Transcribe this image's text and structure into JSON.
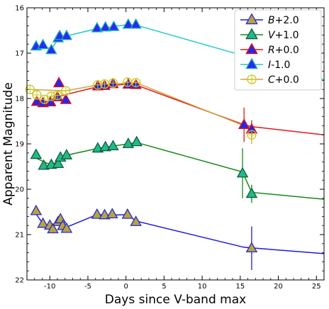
{
  "chart_data": {
    "type": "scatter",
    "xlabel": "Days since V-band max",
    "ylabel": "Apparent Magnitude",
    "xlim": [
      -13,
      26
    ],
    "ylim": [
      22,
      16
    ],
    "y_inverted": true,
    "x_ticks": [
      -10,
      -5,
      0,
      5,
      10,
      15,
      20,
      25
    ],
    "y_ticks": [
      16,
      17,
      18,
      19,
      20,
      21,
      22
    ],
    "legend_position": "top-right",
    "series": [
      {
        "name": "B+2.0",
        "label_band": "B",
        "label_offset": "+2.0",
        "line_color": "#1a1ae6",
        "marker": "triangle",
        "marker_fill": "#b5a53d",
        "marker_edge": "#2a2ad0",
        "x": [
          -11.8,
          -10.9,
          -10.0,
          -9.6,
          -8.9,
          -8.6,
          -8.3,
          -7.8,
          -3.8,
          -2.8,
          -1.8,
          0.2,
          1.3
        ],
        "y": [
          20.48,
          20.76,
          20.8,
          20.88,
          20.72,
          20.66,
          20.81,
          20.87,
          20.56,
          20.57,
          20.55,
          20.56,
          20.72
        ],
        "fit": {
          "x": [
            -12,
            -10.9,
            -10,
            -9,
            -8,
            -3.8,
            -1.8,
            0.2,
            1.3,
            15.5,
            26
          ],
          "y": [
            20.5,
            20.76,
            20.82,
            20.78,
            20.85,
            20.56,
            20.57,
            20.56,
            20.7,
            21.28,
            21.42
          ]
        },
        "late": [
          {
            "x": 16.5,
            "y": 21.3,
            "err": 0.48
          }
        ]
      },
      {
        "name": "V+1.0",
        "label_band": "V",
        "label_offset": "+1.0",
        "line_color": "#158a15",
        "marker": "triangle",
        "marker_fill": "#22b88a",
        "marker_edge": "#0c5e3a",
        "x": [
          -11.8,
          -10.8,
          -9.8,
          -8.9,
          -8.6,
          -7.8,
          -3.7,
          -2.7,
          -1.7,
          0.3,
          1.4
        ],
        "y": [
          19.24,
          19.48,
          19.46,
          19.44,
          19.3,
          19.25,
          19.1,
          19.07,
          19.05,
          19.0,
          18.96
        ],
        "fit": {
          "x": [
            -12,
            -9.8,
            -7.8,
            -3.7,
            1.4,
            15.3,
            16.5,
            26
          ],
          "y": [
            19.3,
            19.47,
            19.25,
            19.1,
            18.97,
            19.62,
            20.07,
            20.22
          ]
        },
        "late": [
          {
            "x": 15.3,
            "y": 19.65,
            "err": 0.55
          },
          {
            "x": 16.5,
            "y": 20.1,
            "err": 0.2
          }
        ]
      },
      {
        "name": "R+0.0",
        "label_band": "R",
        "label_offset": "+0.0",
        "line_color": "#e01818",
        "marker": "triangle",
        "marker_fill": "#2525ee",
        "marker_edge": "#dd1010",
        "x": [
          -11.7,
          -10.9,
          -9.9,
          -9.0,
          -8.8,
          -7.9,
          -3.7,
          -2.8,
          -1.7,
          0.3,
          1.3
        ],
        "y": [
          18.07,
          18.1,
          18.08,
          17.97,
          17.66,
          18.03,
          17.73,
          17.72,
          17.68,
          17.69,
          17.7
        ],
        "fit": {
          "x": [
            -12,
            -9.9,
            -8.8,
            -3.7,
            0.3,
            1.3,
            15.5,
            16.5,
            26
          ],
          "y": [
            18.05,
            18.07,
            17.95,
            17.74,
            17.68,
            17.7,
            18.58,
            18.62,
            18.8
          ]
        },
        "late": [
          {
            "x": 15.5,
            "y": 18.58,
            "err": 0.38
          },
          {
            "x": 16.5,
            "y": 18.68,
            "err": 0.2
          }
        ]
      },
      {
        "name": "I-1.0",
        "label_band": "I",
        "label_offset": "-1.0",
        "line_color": "#1ec8c8",
        "marker": "triangle",
        "marker_fill": "#2a2af2",
        "marker_edge": "#16b4b4",
        "x": [
          -11.8,
          -10.9,
          -9.8,
          -8.9,
          -8.7,
          -7.8,
          -3.8,
          -2.7,
          -1.6,
          0.3,
          1.3
        ],
        "y": [
          16.85,
          16.82,
          16.93,
          16.67,
          16.62,
          16.62,
          16.45,
          16.43,
          16.42,
          16.37,
          16.37
        ],
        "fit": {
          "x": [
            -12,
            -10.9,
            -9.8,
            -8.7,
            -7.8,
            -3.8,
            0.3,
            1.3,
            15.3,
            16.6,
            26
          ],
          "y": [
            16.87,
            16.82,
            16.92,
            16.63,
            16.62,
            16.46,
            16.37,
            16.38,
            17.05,
            17.45,
            17.58
          ]
        },
        "late": [
          {
            "x": 15.3,
            "y": 17.05,
            "err": 0.18
          },
          {
            "x": 16.6,
            "y": 17.45,
            "err": 0.2
          }
        ]
      },
      {
        "name": "C+0.0",
        "label_band": "C",
        "label_offset": "+0.0",
        "line_color": "#d2a23a",
        "marker": "circle-cross",
        "marker_fill": "none",
        "marker_edge": "#c8c81e",
        "x": [
          -12.6,
          -11.7,
          -10.7,
          -9.8,
          -9.0,
          -7.9,
          -3.7,
          -2.8,
          -1.7,
          0.2,
          1.3
        ],
        "y": [
          17.8,
          17.92,
          18.02,
          17.95,
          17.93,
          17.83,
          17.7,
          17.68,
          17.66,
          17.64,
          17.65
        ],
        "fit": {
          "x": [
            -12.6,
            -7.9,
            -3.7,
            1.3,
            15.5,
            16.5
          ],
          "y": [
            17.8,
            17.83,
            17.7,
            17.65,
            18.6,
            18.68
          ]
        },
        "late": [
          {
            "x": 16.5,
            "y": 18.8,
            "err": 0.2
          }
        ]
      }
    ]
  }
}
